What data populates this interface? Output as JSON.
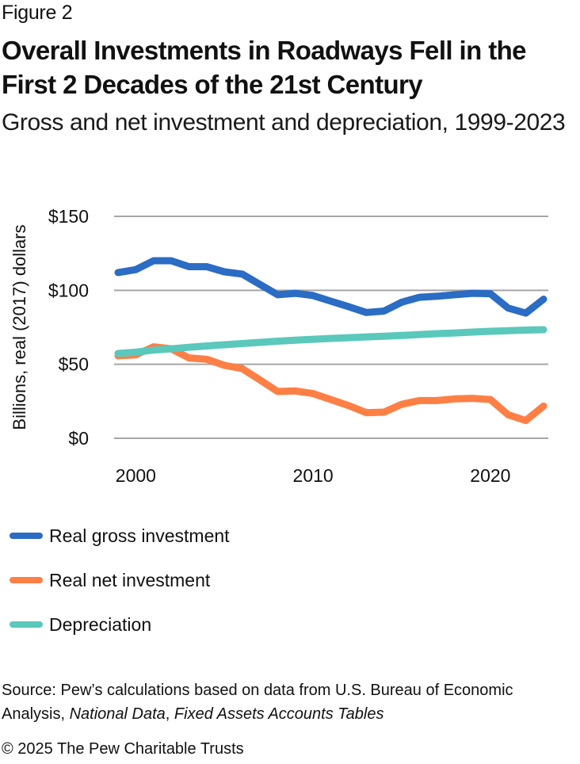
{
  "figure_label": "Figure 2",
  "title": "Overall Investments in Roadways Fell in the First 2 Decades of the 21st Century",
  "subtitle": "Gross and net investment and depreciation, 1999-2023",
  "source": {
    "prefix": "Source: Pew’s calculations based on data from U.S. Bureau of Economic Analysis, ",
    "italic_1": "National Data",
    "separator": ", ",
    "italic_2": "Fixed Assets Accounts Tables"
  },
  "copyright": "© 2025 The Pew Charitable Trusts",
  "chart_data": {
    "type": "line",
    "title": "Overall Investments in Roadways Fell in the First 2 Decades of the 21st Century",
    "subtitle": "Gross and net investment and depreciation, 1999-2023",
    "xlabel": "",
    "ylabel": "Billions, real (2017) dollars",
    "x": [
      1999,
      2000,
      2001,
      2002,
      2003,
      2004,
      2005,
      2006,
      2007,
      2008,
      2009,
      2010,
      2011,
      2012,
      2013,
      2014,
      2015,
      2016,
      2017,
      2018,
      2019,
      2020,
      2021,
      2022,
      2023
    ],
    "xlim": [
      1999,
      2023
    ],
    "ylim": [
      0,
      150
    ],
    "x_ticks": [
      2000,
      2010,
      2020
    ],
    "x_tick_labels": [
      "2000",
      "2010",
      "2020"
    ],
    "y_ticks": [
      0,
      50,
      100,
      150
    ],
    "y_tick_labels": [
      "$0",
      "$50",
      "$100",
      "$150"
    ],
    "grid": "horizontal",
    "legend_position": "bottom",
    "series": [
      {
        "name": "Real gross investment",
        "color": "#2B6CC4",
        "values": [
          112,
          114,
          120,
          120,
          116,
          116,
          112.5,
          111,
          104,
          97,
          98,
          96.5,
          92.7,
          89,
          85,
          86,
          92,
          95.3,
          96,
          97,
          98,
          97.7,
          88,
          84.6,
          94
        ]
      },
      {
        "name": "Real net investment",
        "color": "#FF7F45",
        "values": [
          55.7,
          56.4,
          61.8,
          60.5,
          54.3,
          53.4,
          49.3,
          47.1,
          39.5,
          31.6,
          32,
          30.2,
          26.2,
          22.1,
          17.3,
          17.7,
          23,
          25.5,
          25.5,
          26.6,
          27,
          26.2,
          15.9,
          12,
          21.8
        ]
      },
      {
        "name": "Depreciation",
        "color": "#5BC8BC",
        "values": [
          57.3,
          58.2,
          59.6,
          60.5,
          61.5,
          62.4,
          63.2,
          64,
          64.8,
          65.6,
          66.3,
          66.9,
          67.5,
          68,
          68.5,
          69,
          69.5,
          70.1,
          70.7,
          71.2,
          71.8,
          72.3,
          72.7,
          73.1,
          73.4
        ]
      }
    ]
  }
}
